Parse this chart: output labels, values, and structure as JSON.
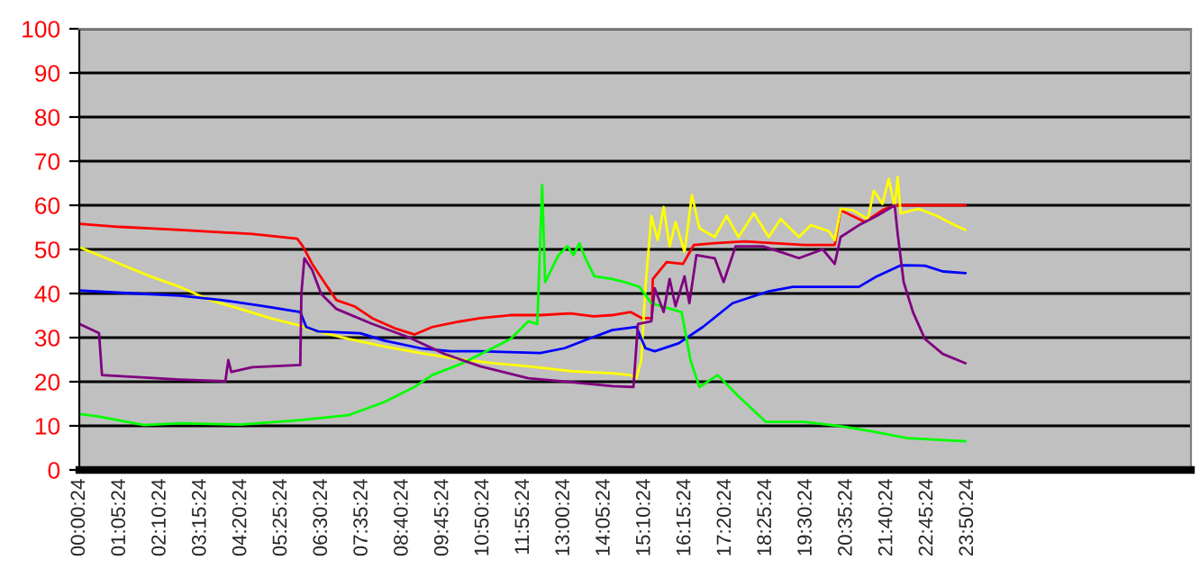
{
  "chart_data": {
    "type": "line",
    "xlim": [
      0,
      29.83
    ],
    "ylim": [
      0,
      100
    ],
    "yticks": [
      0,
      10,
      20,
      30,
      40,
      50,
      60,
      70,
      80,
      90,
      100
    ],
    "xticks": [
      {
        "value": 0.0067,
        "label": "00:00:24"
      },
      {
        "value": 1.09,
        "label": "01:05:24"
      },
      {
        "value": 2.1733,
        "label": "02:10:24"
      },
      {
        "value": 3.2567,
        "label": "03:15:24"
      },
      {
        "value": 4.34,
        "label": "04:20:24"
      },
      {
        "value": 5.4233,
        "label": "05:25:24"
      },
      {
        "value": 6.5067,
        "label": "06:30:24"
      },
      {
        "value": 7.59,
        "label": "07:35:24"
      },
      {
        "value": 8.6733,
        "label": "08:40:24"
      },
      {
        "value": 9.7567,
        "label": "09:45:24"
      },
      {
        "value": 10.84,
        "label": "10:50:24"
      },
      {
        "value": 11.9233,
        "label": "11:55:24"
      },
      {
        "value": 13.0067,
        "label": "13:00:24"
      },
      {
        "value": 14.09,
        "label": "14:05:24"
      },
      {
        "value": 15.1733,
        "label": "15:10:24"
      },
      {
        "value": 16.2567,
        "label": "16:15:24"
      },
      {
        "value": 17.34,
        "label": "17:20:24"
      },
      {
        "value": 18.4233,
        "label": "18:25:24"
      },
      {
        "value": 19.5067,
        "label": "19:30:24"
      },
      {
        "value": 20.59,
        "label": "20:35:24"
      },
      {
        "value": 21.6733,
        "label": "21:40:24"
      },
      {
        "value": 22.7567,
        "label": "22:45:24"
      },
      {
        "value": 23.84,
        "label": "23:50:24"
      }
    ],
    "grid": "y",
    "marker": "none",
    "line_style": "solid",
    "series": [
      {
        "color": "#ff0000",
        "x": [
          0,
          1.1,
          2.7,
          4.64,
          5.85,
          6.0,
          6.25,
          6.57,
          6.9,
          7.38,
          7.86,
          8.5,
          9.0,
          9.47,
          10.1,
          10.76,
          11.57,
          12.37,
          13.18,
          13.8,
          14.3,
          14.79,
          15.1,
          15.36,
          15.39,
          15.76,
          16.2,
          16.49,
          17.05,
          17.85,
          18.66,
          19.46,
          20.27,
          20.43,
          21.08,
          21.55,
          21.88,
          23.78
        ],
        "values": [
          55.8,
          55.1,
          54.4,
          53.5,
          52.4,
          50.7,
          46.7,
          42.6,
          38.5,
          37.1,
          34.4,
          32,
          30.7,
          32.4,
          33.5,
          34.4,
          35.1,
          35.1,
          35.5,
          34.8,
          35.1,
          35.8,
          34.4,
          34.4,
          43.3,
          47.1,
          46.7,
          51,
          51.4,
          51.8,
          51.4,
          51,
          51,
          58.9,
          56.2,
          58.9,
          60,
          60
        ]
      },
      {
        "color": "#ffff00",
        "x": [
          0,
          1.1,
          1.9,
          2.7,
          3.51,
          4.32,
          5.12,
          5.93,
          6.25,
          7.22,
          8.19,
          9.15,
          10.12,
          11.09,
          12.05,
          13.18,
          14.3,
          14.79,
          14.95,
          15.08,
          15.19,
          15.35,
          15.52,
          15.68,
          15.84,
          16.0,
          16.24,
          16.44,
          16.64,
          17.05,
          17.37,
          17.69,
          18.1,
          18.5,
          18.82,
          19.31,
          19.63,
          20.12,
          20.27,
          20.43,
          20.75,
          21.16,
          21.32,
          21.55,
          21.72,
          21.88,
          21.96,
          22.04,
          22.53,
          23.01,
          23.49,
          23.78
        ],
        "values": [
          50.5,
          46.7,
          43.9,
          41.5,
          38.5,
          36.5,
          34.4,
          32.7,
          31.7,
          29.7,
          28,
          26.5,
          25.2,
          24.2,
          23.5,
          22.4,
          21.9,
          21.5,
          20.8,
          24.9,
          41.2,
          57.6,
          52.1,
          59.6,
          50.7,
          56.2,
          49.4,
          62.3,
          54.8,
          52.8,
          57.6,
          52.8,
          58.2,
          52.8,
          56.9,
          52.8,
          55.5,
          54.1,
          52.1,
          59.2,
          58.9,
          56.9,
          63.3,
          60.3,
          66,
          59.6,
          66.4,
          58.2,
          59.2,
          57.6,
          55.5,
          54.4
        ]
      },
      {
        "color": "#0000ff",
        "x": [
          0,
          1.26,
          2.7,
          3.83,
          4.96,
          5.93,
          6.09,
          6.41,
          7.54,
          8.19,
          9.15,
          9.96,
          10.76,
          12.37,
          13.02,
          13.66,
          14.3,
          14.95,
          15.19,
          15.44,
          16.08,
          16.73,
          17.53,
          18.5,
          19.15,
          20.92,
          21.4,
          22.04,
          22.69,
          23.17,
          23.78
        ],
        "values": [
          40.7,
          40.1,
          39.5,
          38.5,
          37.1,
          35.8,
          32.4,
          31.4,
          31,
          29.3,
          27.6,
          26.9,
          26.9,
          26.5,
          27.6,
          29.7,
          31.7,
          32.4,
          27.6,
          26.9,
          28.7,
          32.4,
          37.8,
          40.5,
          41.5,
          41.5,
          43.9,
          46.4,
          46.3,
          45,
          44.6
        ]
      },
      {
        "color": "#00ff00",
        "x": [
          0,
          0.45,
          1.74,
          2.7,
          4.32,
          5.93,
          7.22,
          8.19,
          8.99,
          9.47,
          10.28,
          11.09,
          11.57,
          12.05,
          12.29,
          12.42,
          12.5,
          12.86,
          13.1,
          13.26,
          13.42,
          13.58,
          13.82,
          14.3,
          14.63,
          15.03,
          15.35,
          16.16,
          16.4,
          16.64,
          17.13,
          17.69,
          18.42,
          19.46,
          20.43,
          21.24,
          22.21,
          23.78
        ],
        "values": [
          12.7,
          12.2,
          10.2,
          10.6,
          10.3,
          11.3,
          12.4,
          15.4,
          18.8,
          21.5,
          24.2,
          27.6,
          29.7,
          33.7,
          33.1,
          64.6,
          42.6,
          48.7,
          50.7,
          48.7,
          51.4,
          48,
          43.9,
          43.3,
          42.6,
          41.5,
          37.8,
          35.8,
          24.9,
          18.8,
          21.5,
          16.7,
          10.9,
          10.9,
          9.9,
          8.8,
          7.2,
          6.5
        ]
      },
      {
        "color": "#800080",
        "x": [
          0,
          0.53,
          0.61,
          2.7,
          3.92,
          4.0,
          4.08,
          4.64,
          5.93,
          5.96,
          6.04,
          6.25,
          6.49,
          6.9,
          7.86,
          8.83,
          9.8,
          10.76,
          12.05,
          13.18,
          14.3,
          14.87,
          14.99,
          15.35,
          15.44,
          15.68,
          15.84,
          16.0,
          16.24,
          16.37,
          16.56,
          17.05,
          17.29,
          17.61,
          18.34,
          18.82,
          19.31,
          19.95,
          20.27,
          20.43,
          20.92,
          21.4,
          21.88,
          21.96,
          22.12,
          22.37,
          22.69,
          23.17,
          23.78
        ],
        "values": [
          33.1,
          31,
          21.5,
          20.5,
          20.1,
          24.9,
          22.2,
          23.3,
          23.8,
          40.1,
          48,
          45.3,
          39.9,
          36.5,
          33.1,
          30.1,
          26.3,
          23.5,
          20.8,
          19.9,
          19,
          18.8,
          33.1,
          33.7,
          41.2,
          35.8,
          43.3,
          37.1,
          43.9,
          37.8,
          48.7,
          48,
          42.6,
          50.7,
          50.7,
          49.4,
          48,
          50,
          46.7,
          52.8,
          55.5,
          57.6,
          60,
          53.5,
          42.6,
          35.8,
          29.7,
          26.3,
          24.2
        ]
      }
    ]
  }
}
